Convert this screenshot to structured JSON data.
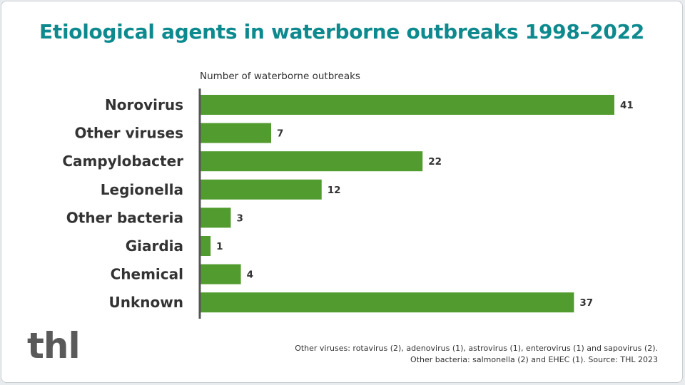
{
  "colors": {
    "title": "#0e8a8f",
    "bar": "#529b2e",
    "axis": "#555555",
    "text": "#333333",
    "logo": "#5a5a5a"
  },
  "logo_text": "thl",
  "footnote": {
    "line1": "Other viruses: rotavirus (2), adenovirus (1), astrovirus (1), enterovirus (1) and sapovirus (2).",
    "line2": "Other bacteria: salmonella (2) and EHEC (1). Source: THL 2023"
  },
  "chart_data": {
    "type": "bar",
    "orientation": "horizontal",
    "title": "Etiological agents in waterborne outbreaks 1998–2022",
    "xlabel": "Number of waterborne outbreaks",
    "ylabel": "",
    "categories": [
      "Norovirus",
      "Other viruses",
      "Campylobacter",
      "Legionella",
      "Other bacteria",
      "Giardia",
      "Chemical",
      "Unknown"
    ],
    "values": [
      41,
      7,
      22,
      12,
      3,
      1,
      4,
      37
    ],
    "xlim": [
      0,
      41
    ],
    "data_labels": true,
    "grid": false,
    "legend": "none"
  }
}
